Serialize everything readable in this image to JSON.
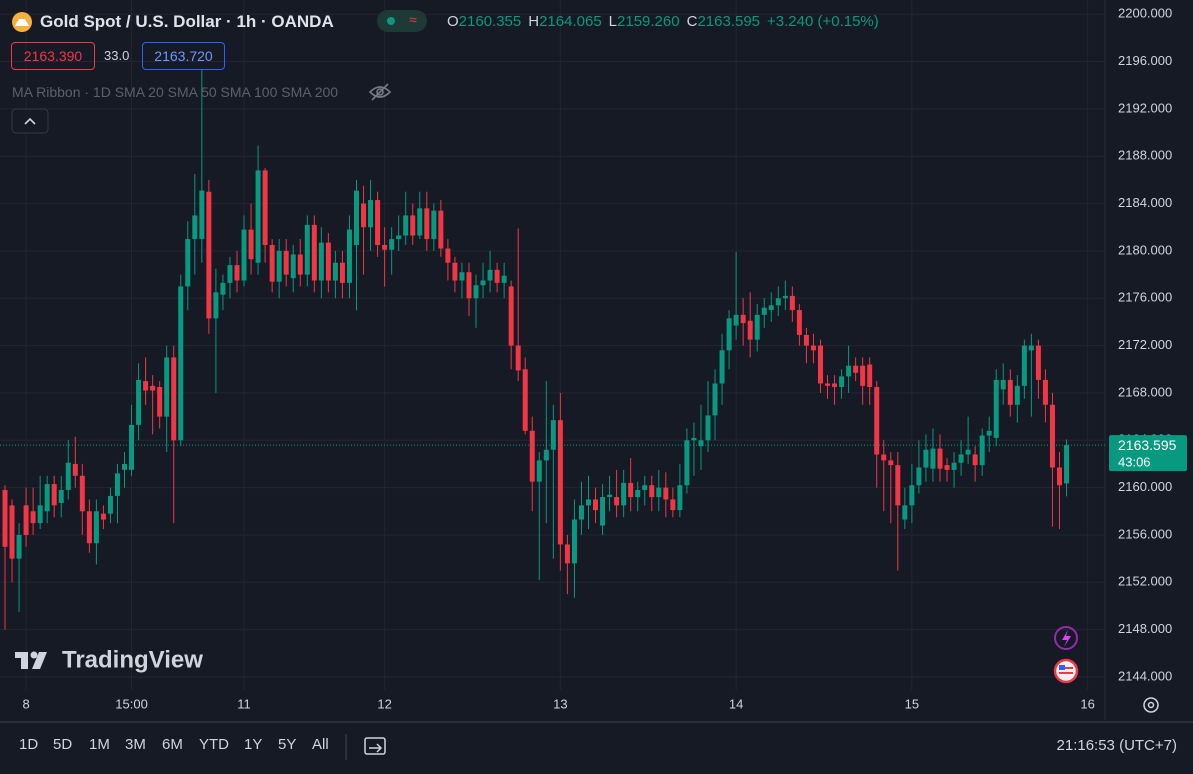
{
  "header": {
    "symbol": "Gold Spot / U.S. Dollar · 1h · OANDA",
    "ohlc": [
      {
        "key": "O",
        "value": "2160.355"
      },
      {
        "key": "H",
        "value": "2164.065"
      },
      {
        "key": "L",
        "value": "2159.260"
      },
      {
        "key": "C",
        "value": "2163.595"
      }
    ],
    "change": "+3.240 (+0.15%)",
    "bid": "2163.390",
    "spread": "33.0",
    "ask": "2163.720",
    "indicator": "MA Ribbon · 1D SMA 20 SMA 50 SMA 100 SMA 200"
  },
  "chart_data": {
    "type": "candlestick",
    "up_color": "#089981",
    "down_color": "#f23645",
    "grid": true,
    "categories": [
      null,
      null,
      null,
      "8",
      null,
      null,
      null,
      null,
      null,
      null,
      null,
      null,
      null,
      null,
      null,
      null,
      null,
      null,
      "15:00",
      null,
      null,
      null,
      null,
      null,
      null,
      null,
      null,
      null,
      null,
      null,
      null,
      null,
      null,
      null,
      "11",
      null,
      null,
      null,
      null,
      null,
      null,
      null,
      null,
      null,
      null,
      null,
      null,
      null,
      null,
      null,
      null,
      null,
      null,
      null,
      "12",
      null,
      null,
      null,
      null,
      null,
      null,
      null,
      null,
      null,
      null,
      null,
      null,
      null,
      null,
      null,
      null,
      null,
      null,
      null,
      null,
      null,
      null,
      null,
      null,
      "13",
      null,
      null,
      null,
      null,
      null,
      null,
      null,
      null,
      null,
      null,
      null,
      null,
      null,
      null,
      null,
      null,
      null,
      null,
      null,
      null,
      null,
      null,
      null,
      null,
      "14",
      null,
      null,
      null,
      null,
      null,
      null,
      null,
      null,
      null,
      null,
      null,
      null,
      null,
      null,
      null,
      null,
      null,
      null,
      null,
      null,
      null,
      null,
      null,
      null,
      "15",
      null,
      null,
      null,
      null,
      null,
      null,
      null,
      null,
      null,
      null,
      null,
      null,
      null,
      null,
      null,
      null,
      null,
      null,
      null,
      null,
      null,
      null,
      null,
      null,
      "16"
    ],
    "open": [
      2159.8,
      2158.5,
      2154,
      2158.5,
      2158,
      2157,
      2158,
      2160.3,
      2158.7,
      2159.8,
      2162,
      2161,
      2158,
      2155.3,
      2157.8,
      2157.8,
      2159.3,
      2161.5,
      2161.5,
      2165.3,
      2169,
      2168.6,
      2168.5,
      2166,
      2171,
      2164,
      2177,
      2181,
      2181,
      2185,
      2174.3,
      2176.3,
      2177.3,
      2178.8,
      2177.5,
      2181.8,
      2179,
      2186.8,
      2180.5,
      2177.4,
      2180,
      2177.7,
      2179.7,
      2178,
      2182.2,
      2177.5,
      2180.7,
      2177.5,
      2179,
      2177.3,
      2180.5,
      2184,
      2182,
      2184.3,
      2180.5,
      2180.1,
      2181,
      2181.3,
      2183,
      2181.3,
      2183.6,
      2181,
      2183.4,
      2180.2,
      2179,
      2177.5,
      2178.2,
      2176,
      2177.1,
      2177.5,
      2178.4,
      2177.3,
      2177,
      2172,
      2170,
      2164.8,
      2160.5,
      2162.3,
      2163.2,
      2165.7,
      2155.2,
      2153.6,
      2157.3,
      2158.5,
      2159,
      2156.8,
      2159.2,
      2159.2,
      2158.5,
      2160.4,
      2159.2,
      2159.8,
      2160.2,
      2159.2,
      2160,
      2159,
      2158.1,
      2160.2,
      2164,
      2163.5,
      2164,
      2166.1,
      2168.8,
      2171.6,
      2173.7,
      2174.6,
      2174.1,
      2172.5,
      2174.6,
      2175,
      2175.4,
      2176,
      2176.2,
      2175,
      2172.9,
      2172,
      2172,
      2168.8,
      2168.8,
      2168.5,
      2169.4,
      2170.3,
      2170.3,
      2170.4,
      2168.5,
      2162.8,
      2162.3,
      2161.9,
      2157.3,
      2158.5,
      2160.2,
      2161.7,
      2161.6,
      2163.3,
      2161.9,
      2161.5,
      2162.1,
      2162.8,
      2162.8,
      2161.9,
      2164.4,
      2164.2,
      2168.3,
      2169.1,
      2167,
      2168.6,
      2171.6,
      2172,
      2169.1,
      2167,
      2161.7,
      2160.355,
      null,
      null,
      null
    ],
    "high": [
      2160.2,
      2159,
      2157,
      2160,
      2160,
      2161,
      2161,
      2161,
      2161,
      2164,
      2164.3,
      2162,
      2159,
      2159,
      2158.5,
      2160,
      2162,
      2163,
      2167,
      2170.5,
      2171,
      2169.5,
      2169,
      2172,
      2172,
      2178,
      2182.5,
      2186.5,
      2195.3,
      2186,
      2178.5,
      2178,
      2179.5,
      2180,
      2183,
      2184,
      2188.9,
      2187,
      2181,
      2181,
      2181,
      2180.5,
      2181,
      2183,
      2183,
      2182,
      2181.5,
      2180,
      2180,
      2183,
      2186,
      2185.5,
      2186,
      2185,
      2182,
      2182,
      2183,
      2185,
      2184,
      2185,
      2185,
      2184,
      2184.3,
      2181,
      2179.5,
      2179,
      2179,
      2178,
      2179,
      2180,
      2179,
      2179,
      2177.5,
      2181.9,
      2171,
      2166,
      2163,
      2169,
      2167,
      2168,
      2156,
      2159,
      2160.5,
      2161,
      2160,
      2160.3,
      2161,
      2161.5,
      2161.5,
      2162.5,
      2160.5,
      2161,
      2161,
      2161.5,
      2161.3,
      2160,
      2162,
      2165,
      2165.5,
      2167,
      2169,
      2170,
      2173,
      2175,
      2179.9,
      2176,
      2176.5,
      2175.5,
      2176,
      2176.5,
      2177,
      2177.5,
      2177,
      2175.5,
      2173.5,
      2173,
      2172.5,
      2169.5,
      2169.5,
      2170,
      2172,
      2171,
      2171,
      2171,
      2169,
      2164,
      2163,
      2163,
      2160,
      2162,
      2164,
      2164.5,
      2165,
      2164.5,
      2162.5,
      2163,
      2164,
      2166,
      2163.5,
      2165,
      2166,
      2170,
      2170.5,
      2170,
      2169.5,
      2172.5,
      2173,
      2172.5,
      2170,
      2168,
      2163,
      2164.065,
      null,
      null,
      null
    ],
    "low": [
      2148,
      2152,
      2149.5,
      2155,
      2156,
      2156.5,
      2157,
      2157.5,
      2157.5,
      2159,
      2160,
      2156,
      2154.5,
      2153.5,
      2156.5,
      2157,
      2157,
      2160,
      2161,
      2164,
      2167,
      2164.5,
      2165,
      2163,
      2157,
      2163.5,
      2175,
      2178,
      2179,
      2173,
      2168,
      2175,
      2176,
      2176.5,
      2177,
      2178,
      2178,
      2179,
      2176.5,
      2176,
      2177,
      2176.5,
      2177,
      2177,
      2176.5,
      2176,
      2176.5,
      2176,
      2176,
      2176,
      2175,
      2178,
      2180,
      2179.5,
      2177,
      2178,
      2180,
      2180.5,
      2180.5,
      2181,
      2180,
      2180,
      2179.5,
      2177.5,
      2176.5,
      2176,
      2174.5,
      2173.5,
      2176,
      2176.5,
      2176.5,
      2176,
      2170,
      2169,
      2164.5,
      2158,
      2152.2,
      2157,
      2154,
      2153,
      2151,
      2150.7,
      2156,
      2156.5,
      2157,
      2156,
      2158,
      2157.5,
      2157.5,
      2158,
      2158,
      2158.5,
      2158,
      2158,
      2157.5,
      2157.5,
      2157.5,
      2159.5,
      2161,
      2161.5,
      2163,
      2164,
      2167,
      2170,
      2172.5,
      2172,
      2171,
      2171.5,
      2173.5,
      2174,
      2174.5,
      2175,
      2174,
      2172,
      2170.5,
      2170.5,
      2168,
      2167.5,
      2167,
      2167.5,
      2168,
      2169,
      2167,
      2167,
      2160,
      2158,
      2157,
      2153,
      2156.5,
      2157,
      2159.5,
      2160.5,
      2160.5,
      2160.5,
      2160.5,
      2160,
      2161,
      2162,
      2160.5,
      2161,
      2163,
      2163.5,
      2167,
      2166,
      2165.5,
      2167.5,
      2166,
      2167.5,
      2165.5,
      2156.7,
      2156.5,
      2159.26,
      null,
      null,
      null
    ],
    "close": [
      2155,
      2154,
      2156,
      2156,
      2157,
      2158.5,
      2160.3,
      2158.5,
      2159.8,
      2162.1,
      2161,
      2158,
      2155.3,
      2158,
      2157.3,
      2159.3,
      2161.2,
      2162,
      2165.3,
      2169.1,
      2168.2,
      2168.2,
      2166,
      2171,
      2164,
      2177,
      2181,
      2183,
      2185.1,
      2174.3,
      2176.5,
      2177.3,
      2178.8,
      2177.5,
      2181.8,
      2179.3,
      2186.8,
      2180.5,
      2177.4,
      2180,
      2178,
      2179.7,
      2178,
      2182.2,
      2177.5,
      2180.7,
      2177.5,
      2179,
      2177.3,
      2181.8,
      2185.1,
      2182,
      2184.3,
      2180.5,
      2180.1,
      2181,
      2181.3,
      2183,
      2181.3,
      2183.6,
      2181,
      2183.4,
      2180.2,
      2179,
      2177.5,
      2178.2,
      2176,
      2177.1,
      2177.5,
      2178.4,
      2177.3,
      2177.9,
      2172,
      2169.9,
      2164.8,
      2160.5,
      2162.3,
      2163.2,
      2165.7,
      2155.2,
      2153.6,
      2157.3,
      2158.5,
      2159,
      2158.1,
      2159.2,
      2159.4,
      2158.5,
      2160.4,
      2159.2,
      2159.8,
      2160.2,
      2159.2,
      2160,
      2159,
      2158.1,
      2160.2,
      2164,
      2164.2,
      2164,
      2166.1,
      2168.8,
      2171.6,
      2174.3,
      2174.6,
      2173.9,
      2172.5,
      2174.6,
      2175.2,
      2175.4,
      2176,
      2176.2,
      2175,
      2172.9,
      2172,
      2171.6,
      2168.8,
      2168.6,
      2168.5,
      2169.4,
      2170.3,
      2169.7,
      2168.6,
      2168.5,
      2162.8,
      2162.3,
      2161.9,
      2158.5,
      2158.5,
      2160.2,
      2161.7,
      2163.2,
      2163.3,
      2161.6,
      2161.5,
      2162.1,
      2162.8,
      2163.2,
      2161.9,
      2164.4,
      2164.8,
      2169.1,
      2169.1,
      2167,
      2168.6,
      2172,
      2172,
      2169.1,
      2167,
      2161.7,
      2160.2,
      2163.595,
      null,
      null,
      null
    ],
    "ylim": [
      2142.9,
      2201.2
    ],
    "yticks": [
      {
        "value": 2144,
        "label": "2144.000"
      },
      {
        "value": 2148,
        "label": "2148.000"
      },
      {
        "value": 2152,
        "label": "2152.000"
      },
      {
        "value": 2156,
        "label": "2156.000"
      },
      {
        "value": 2160,
        "label": "2160.000"
      },
      {
        "value": 2164,
        "label": "2164.000"
      },
      {
        "value": 2168,
        "label": "2168.000"
      },
      {
        "value": 2172,
        "label": "2172.000"
      },
      {
        "value": 2176,
        "label": "2176.000"
      },
      {
        "value": 2180,
        "label": "2180.000"
      },
      {
        "value": 2184,
        "label": "2184.000"
      },
      {
        "value": 2188,
        "label": "2188.000"
      },
      {
        "value": 2192,
        "label": "2192.000"
      },
      {
        "value": 2196,
        "label": "2196.000"
      },
      {
        "value": 2200,
        "label": "2200.000"
      }
    ],
    "last_price": 2163.595,
    "countdown": "43:06"
  },
  "logo": "TradingView",
  "toolbar": {
    "ranges": [
      "1D",
      "5D",
      "1M",
      "3M",
      "6M",
      "YTD",
      "1Y",
      "5Y",
      "All"
    ],
    "clock": "21:16:53 (UTC+7)"
  }
}
